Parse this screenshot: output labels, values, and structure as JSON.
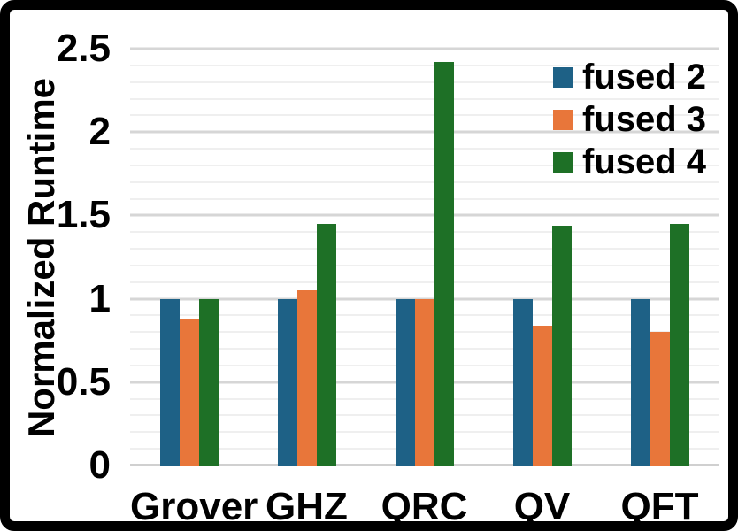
{
  "frame": {
    "background": "#ffffff",
    "border_color": "#000000"
  },
  "chart_data": {
    "type": "bar",
    "title": "",
    "xlabel": "",
    "ylabel": "Normalized Runtime",
    "categories": [
      "Grover",
      "GHZ",
      "QRC",
      "QV",
      "QFT"
    ],
    "series": [
      {
        "name": "fused 2",
        "color": "#1e6186",
        "values": [
          1.0,
          1.0,
          1.0,
          1.0,
          1.0
        ]
      },
      {
        "name": "fused 3",
        "color": "#e8763a",
        "values": [
          0.88,
          1.05,
          1.0,
          0.84,
          0.8
        ]
      },
      {
        "name": "fused 4",
        "color": "#1e7026",
        "values": [
          1.0,
          1.45,
          2.42,
          1.44,
          1.45
        ]
      }
    ],
    "ylim": [
      0,
      2.5
    ],
    "yticks": [
      0,
      0.5,
      1,
      1.5,
      2,
      2.5
    ],
    "ytick_labels": [
      "0",
      "0.5",
      "1",
      "1.5",
      "2",
      "2.5"
    ],
    "minor_grid_step": 0.1,
    "major_grid_step": 0.5,
    "grid": "horizontal",
    "grid_minor_color": "#efefef",
    "grid_major_color": "#d6d6d6",
    "axis_line_color": "#d0d0d0",
    "legend_position": "top-right",
    "text_color": "#000000"
  }
}
